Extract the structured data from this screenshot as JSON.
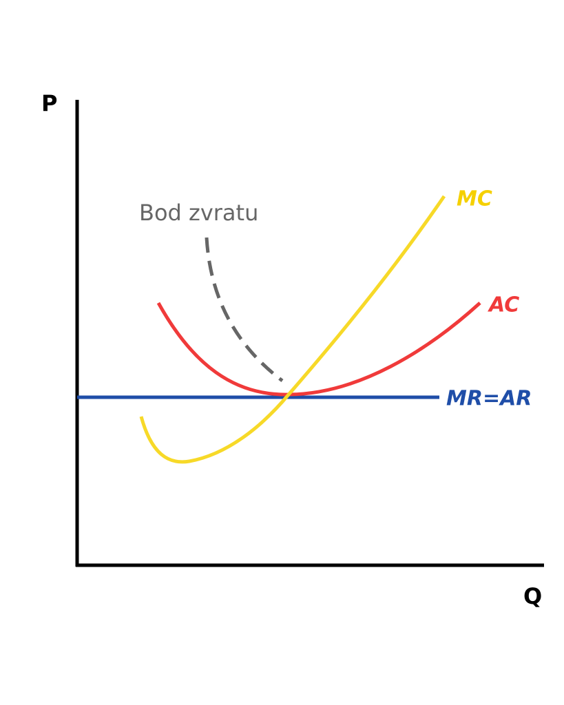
{
  "axes": {
    "y_label": "P",
    "x_label": "Q"
  },
  "curves": [
    {
      "label": "MC"
    },
    {
      "label": "AC"
    },
    {
      "label": "MR=AR"
    }
  ],
  "annotation": "Bod zvratu"
}
